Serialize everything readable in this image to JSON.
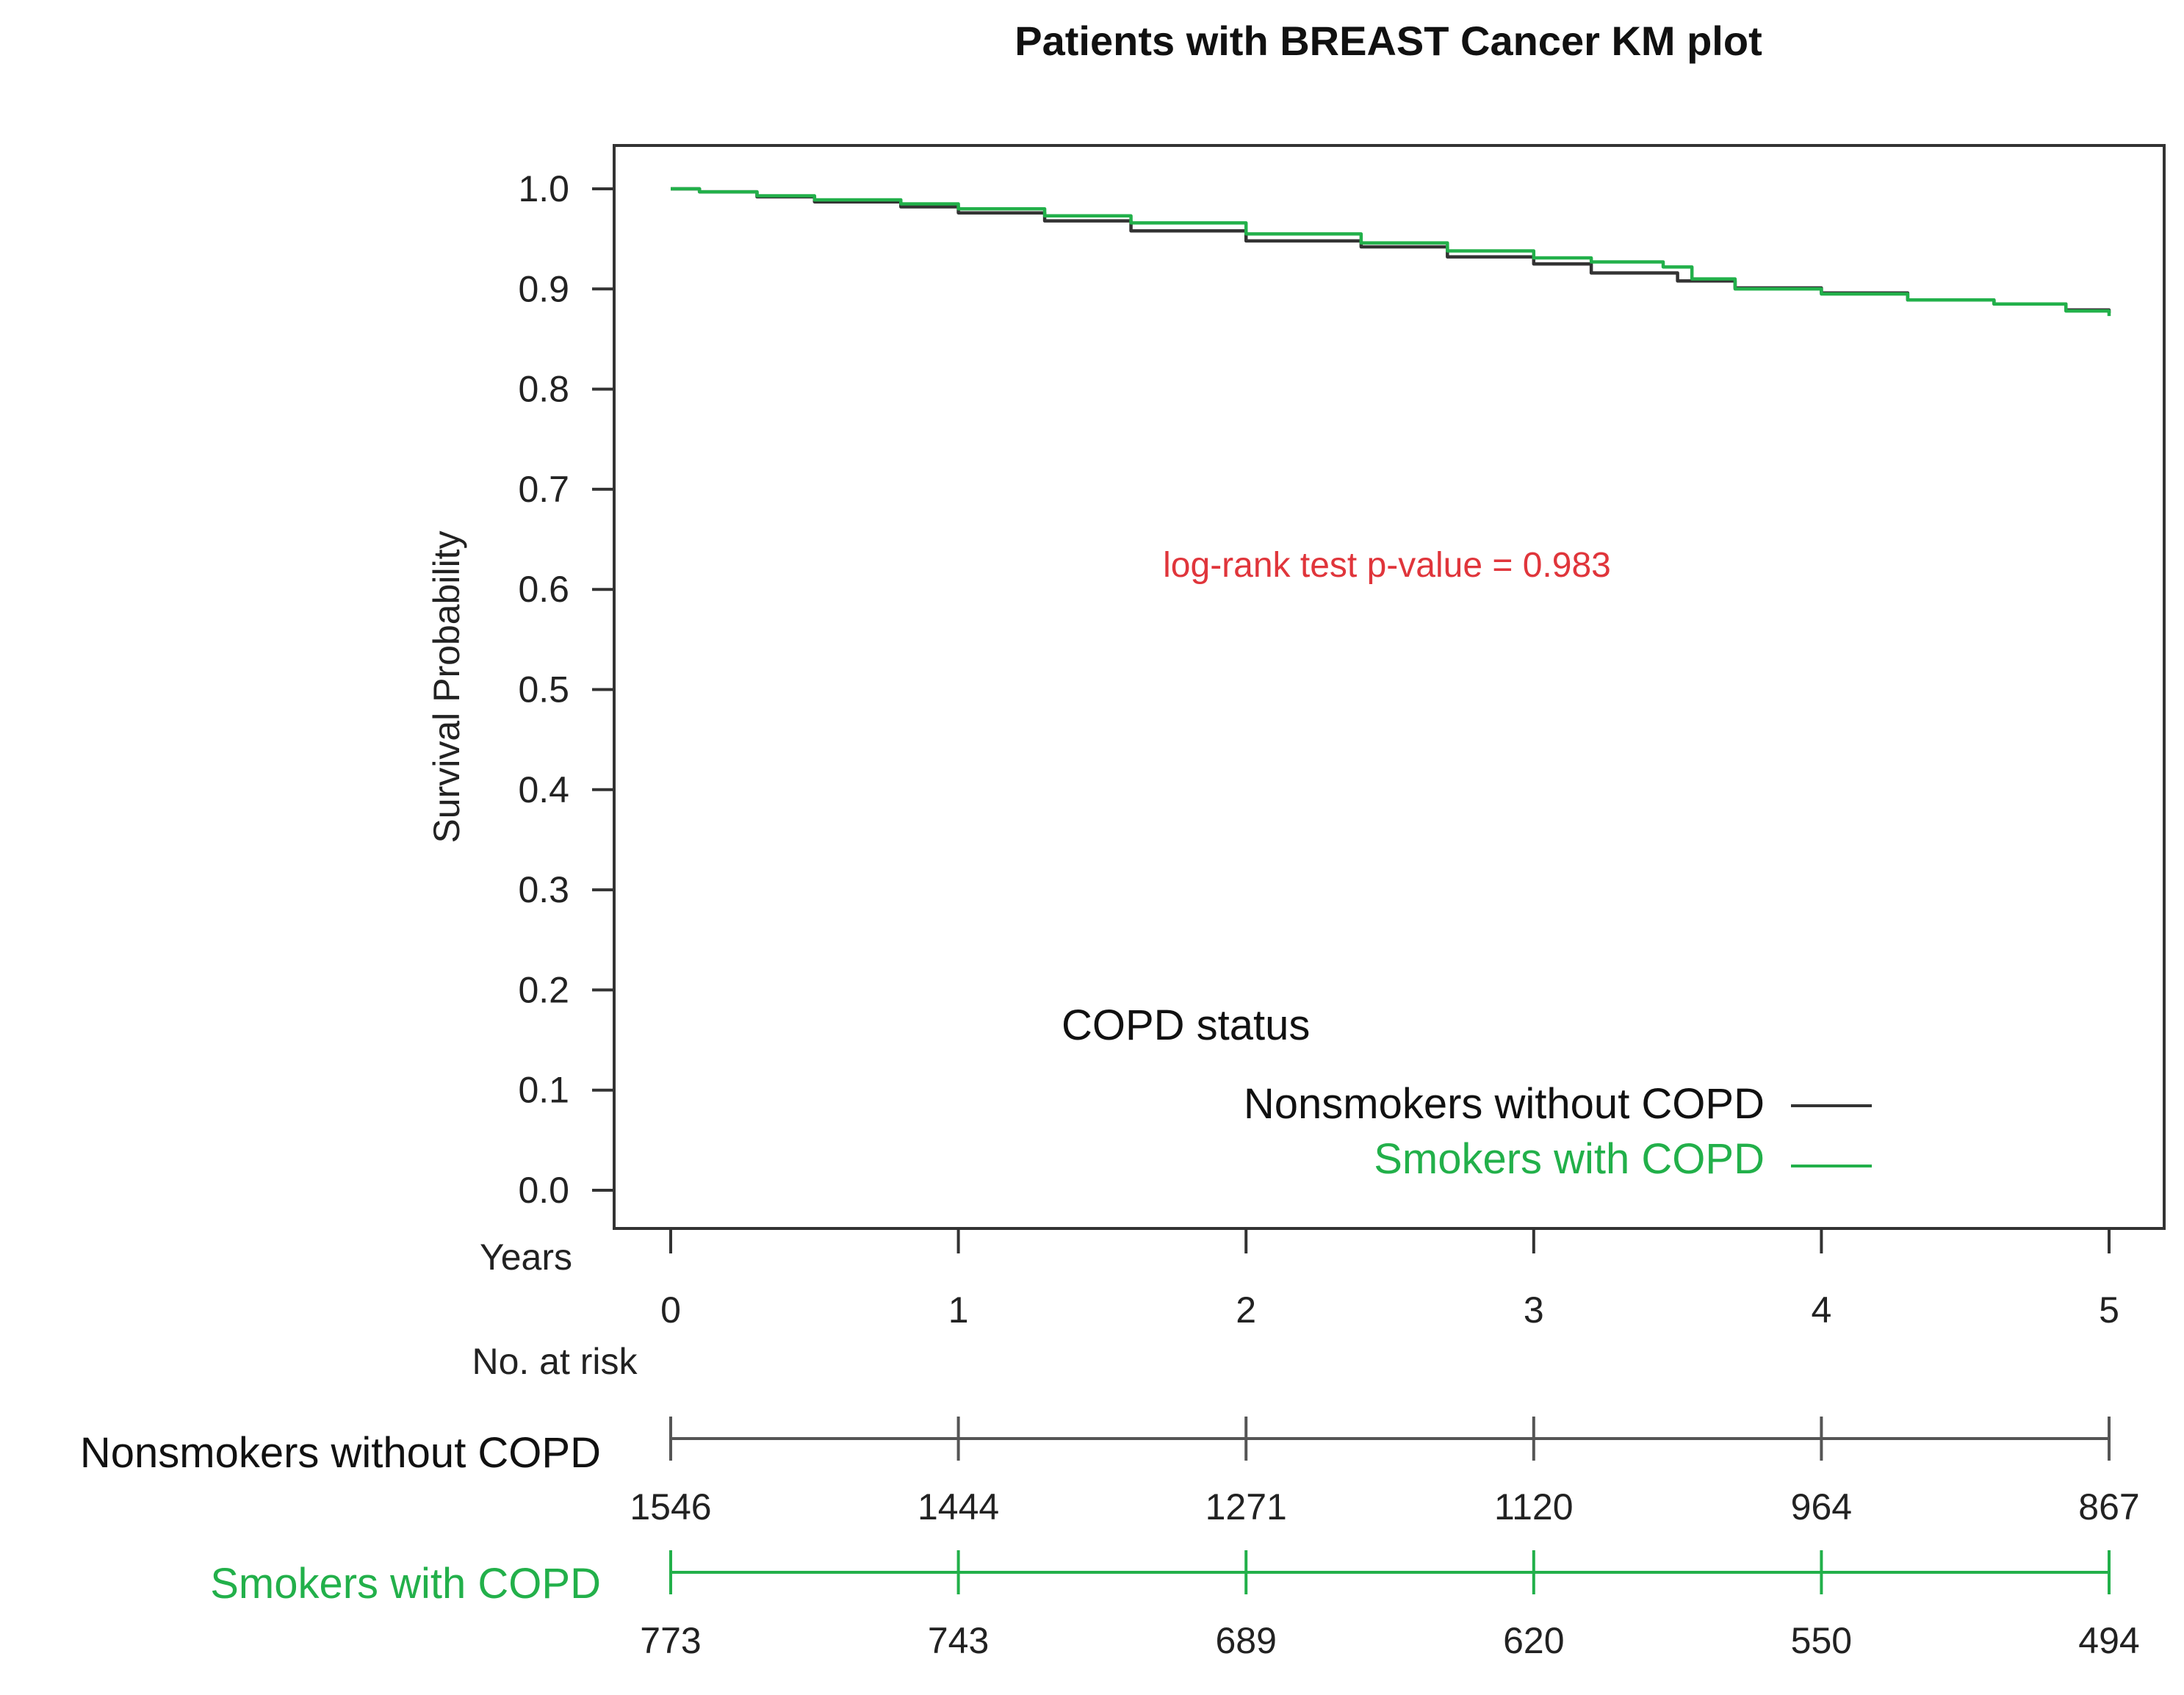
{
  "chart_data": {
    "type": "line",
    "title": "Patients with BREAST Cancer KM plot",
    "xlabel": "Years",
    "ylabel": "Survival Probability",
    "xlim": [
      0,
      5
    ],
    "ylim": [
      0,
      1
    ],
    "x_ticks": [
      "0",
      "1",
      "2",
      "3",
      "4",
      "5"
    ],
    "y_ticks": [
      "0.0",
      "0.1",
      "0.2",
      "0.3",
      "0.4",
      "0.5",
      "0.6",
      "0.7",
      "0.8",
      "0.9",
      "1.0"
    ],
    "grid": false,
    "annotation": "log-rank test p-value = 0.983",
    "annotation_color": "#e0353b",
    "legend": {
      "title": "COPD status",
      "placement": "bottom-right",
      "entries": [
        "Nonsmokers without COPD",
        "Smokers with COPD"
      ]
    },
    "series": [
      {
        "name": "Nonsmokers without COPD",
        "color": "#333333",
        "x": [
          0,
          0.1,
          0.3,
          0.5,
          0.8,
          1.0,
          1.3,
          1.6,
          2.0,
          2.4,
          2.7,
          3.0,
          3.2,
          3.5,
          3.7,
          4.0,
          4.3,
          4.6,
          4.85,
          5.0
        ],
        "y": [
          1.0,
          0.997,
          0.992,
          0.987,
          0.982,
          0.976,
          0.968,
          0.958,
          0.948,
          0.942,
          0.932,
          0.925,
          0.916,
          0.908,
          0.901,
          0.896,
          0.889,
          0.885,
          0.879,
          0.876
        ]
      },
      {
        "name": "Smokers with COPD",
        "color": "#22b04a",
        "x": [
          0,
          0.1,
          0.3,
          0.5,
          0.8,
          1.0,
          1.3,
          1.6,
          2.0,
          2.4,
          2.7,
          3.0,
          3.2,
          3.45,
          3.55,
          3.7,
          4.0,
          4.3,
          4.6,
          4.85,
          5.0
        ],
        "y": [
          1.0,
          0.997,
          0.993,
          0.989,
          0.985,
          0.98,
          0.973,
          0.966,
          0.955,
          0.946,
          0.938,
          0.931,
          0.927,
          0.922,
          0.91,
          0.9,
          0.895,
          0.889,
          0.885,
          0.878,
          0.873
        ]
      }
    ],
    "risk_table": {
      "header": "No. at risk",
      "rows": [
        {
          "name": "Nonsmokers without COPD",
          "color": "#333333",
          "values": [
            "1546",
            "1444",
            "1271",
            "1120",
            "964",
            "867"
          ]
        },
        {
          "name": "Smokers with COPD",
          "color": "#22b04a",
          "values": [
            "773",
            "743",
            "689",
            "620",
            "550",
            "494"
          ]
        }
      ]
    }
  }
}
